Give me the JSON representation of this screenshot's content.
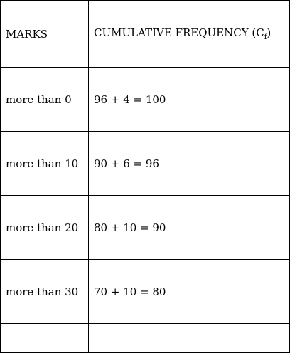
{
  "table": {
    "headers": {
      "marks": "MARKS",
      "cf_prefix": "CUMULATIVE FREQUENCY (C",
      "cf_subscript": "f",
      "cf_suffix": ")"
    },
    "rows": [
      {
        "marks": "more than 0",
        "cf": "96 + 4 = 100"
      },
      {
        "marks": "more than 10",
        "cf": "90 + 6 = 96"
      },
      {
        "marks": "more than 20",
        "cf": "80 + 10 = 90"
      },
      {
        "marks": "more than 30",
        "cf": "70 + 10 = 80"
      }
    ]
  }
}
